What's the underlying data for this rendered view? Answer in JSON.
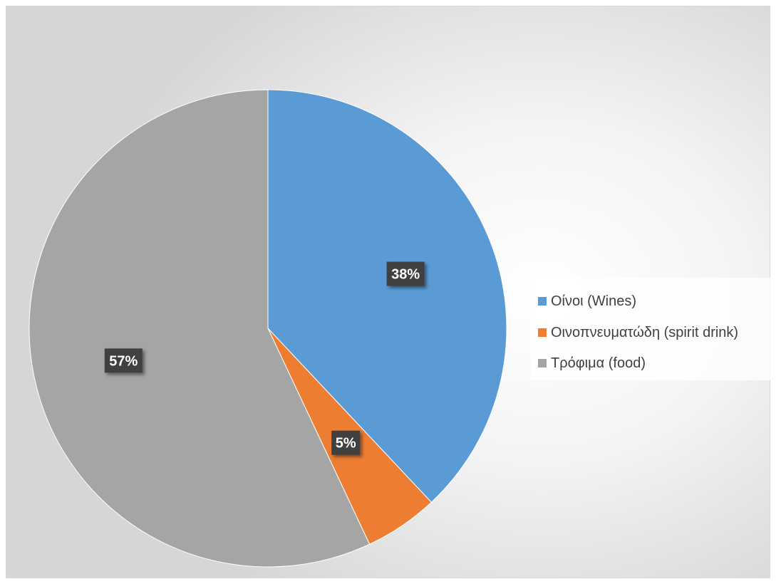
{
  "chart_data": {
    "type": "pie",
    "title": "",
    "categories": [
      "Οίνοι (Wines)",
      "Οινοπνευματώδη (spirit drink)",
      "Τρόφιμα (food)"
    ],
    "values": [
      38,
      5,
      57
    ],
    "data_labels": [
      "38%",
      "5%",
      "57%"
    ],
    "colors": [
      "#5b9bd5",
      "#ed7d31",
      "#a5a5a5"
    ],
    "start_angle_deg": 0,
    "legend_position": "right",
    "label_style": "dark-box-white-bold"
  }
}
